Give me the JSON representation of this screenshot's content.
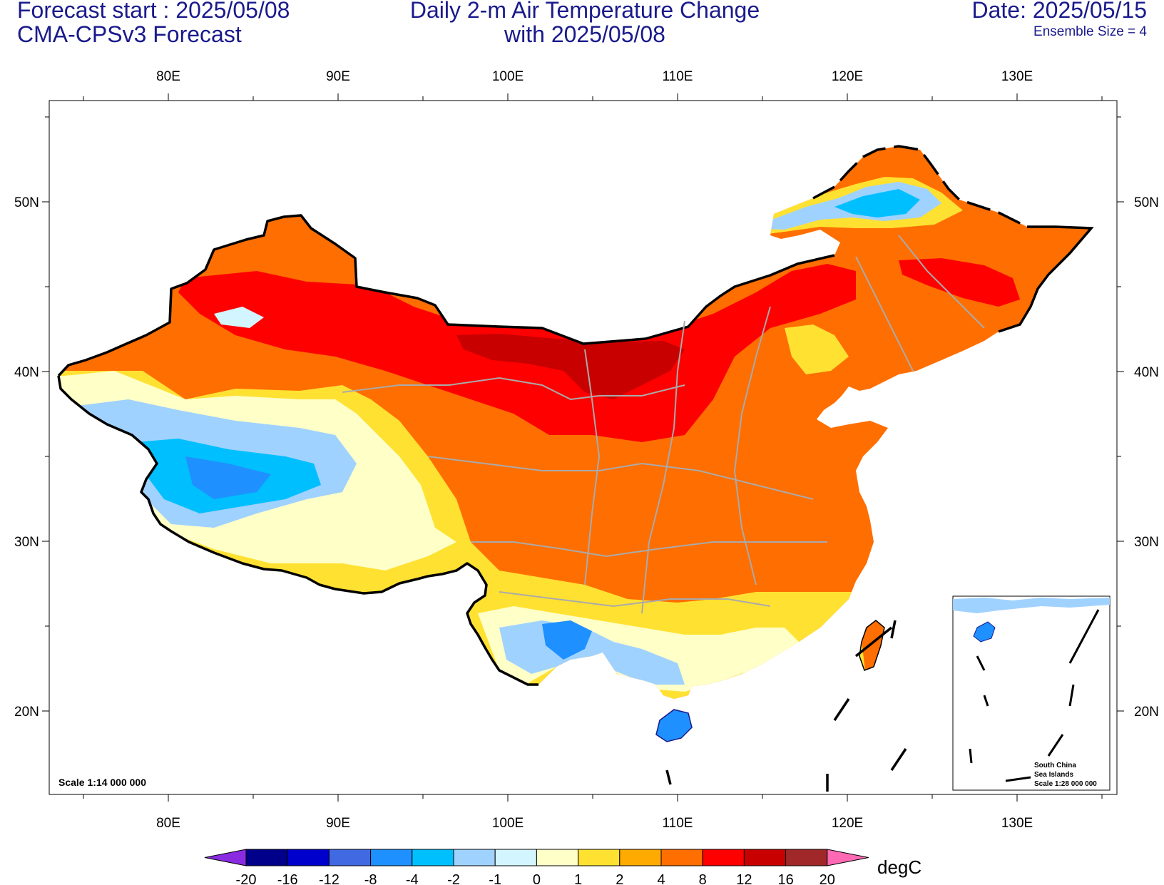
{
  "header": {
    "left_line1": "Forecast start : 2025/05/08",
    "left_line2": "CMA-CPSv3 Forecast",
    "center_line1": "Daily 2-m Air Temperature Change",
    "center_line2": "with 2025/05/08",
    "right_line1": "Date: 2025/05/15",
    "right_line2": "Ensemble Size = 4"
  },
  "axes": {
    "lon_labels": [
      "80E",
      "90E",
      "100E",
      "110E",
      "120E",
      "130E"
    ],
    "lat_labels": [
      "50N",
      "40N",
      "30N",
      "20N"
    ]
  },
  "scale_text": "Scale 1:14 000 000",
  "inset": {
    "line1": "South China",
    "line2": "Sea Islands",
    "line3": "Scale 1:28 000 000"
  },
  "colorbar": {
    "unit": "degC",
    "labels": [
      "-20",
      "-16",
      "-12",
      "-8",
      "-4",
      "-2",
      "-1",
      "0",
      "1",
      "2",
      "4",
      "8",
      "12",
      "16",
      "20"
    ],
    "colors": [
      "#8a2be2",
      "#00008b",
      "#0000cd",
      "#4169e1",
      "#1e90ff",
      "#00bfff",
      "#a0d2ff",
      "#d2f5ff",
      "#ffffc8",
      "#ffe132",
      "#ffaa00",
      "#ff6e00",
      "#ff0000",
      "#c80000",
      "#a02828",
      "#ff69b4"
    ]
  }
}
